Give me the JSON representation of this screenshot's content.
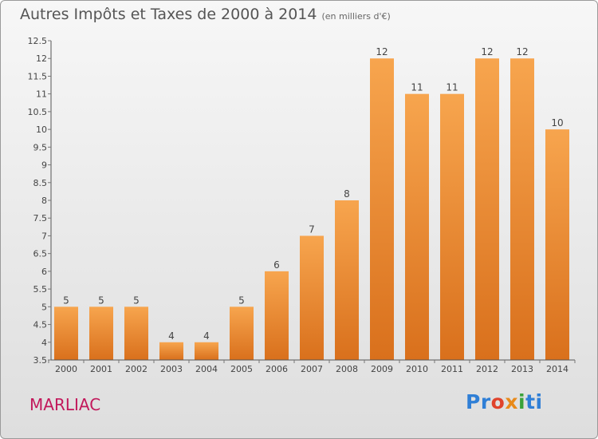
{
  "header": {
    "title": "Autres Impôts et Taxes de 2000 à 2014",
    "subtitle": "(en milliers d'€)"
  },
  "footer": {
    "town": "MARLIAC",
    "logo_text": "Proxiti",
    "logo_parts": [
      "Pr",
      "o",
      "x",
      "i",
      "ti"
    ]
  },
  "colors": {
    "bar_light": "#f7a54e",
    "bar_dark": "#d9701c",
    "axis": "#555555",
    "grid_tick": "#777777",
    "town": "#c2185b"
  },
  "chart_data": {
    "type": "bar",
    "categories": [
      "2000",
      "2001",
      "2002",
      "2003",
      "2004",
      "2005",
      "2006",
      "2007",
      "2008",
      "2009",
      "2010",
      "2011",
      "2012",
      "2013",
      "2014"
    ],
    "values": [
      5,
      5,
      5,
      4,
      4,
      5,
      6,
      7,
      8,
      12,
      11,
      11,
      12,
      12,
      10
    ],
    "data_labels": [
      "5",
      "5",
      "5",
      "4",
      "4",
      "5",
      "6",
      "7",
      "8",
      "12",
      "11",
      "11",
      "12",
      "12",
      "10"
    ],
    "ylim": [
      3.5,
      12.5
    ],
    "yticks": [
      "3.5",
      "4",
      "4.5",
      "5",
      "5.5",
      "6",
      "6.5",
      "7",
      "7.5",
      "8",
      "8.5",
      "9",
      "9.5",
      "10",
      "10.5",
      "11",
      "11.5",
      "12",
      "12.5"
    ],
    "grid": false,
    "legend": "none"
  }
}
